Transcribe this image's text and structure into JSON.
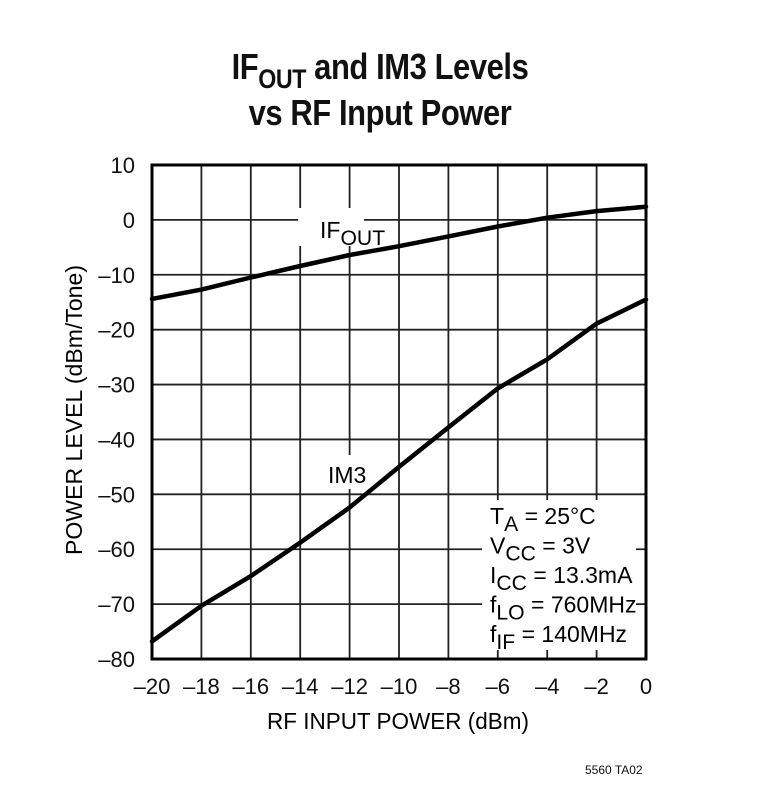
{
  "title": {
    "line1_main": "IF",
    "line1_sub": "OUT",
    "line1_rest": " and IM3 Levels",
    "line2": "vs RF Input Power"
  },
  "figure_id": "5560 TA02",
  "labels": {
    "ifout_main": "IF",
    "ifout_sub": "OUT",
    "im3": "IM3"
  },
  "conditions": [
    {
      "main": "T",
      "sub": "A",
      "rest": " = 25°C"
    },
    {
      "main": "V",
      "sub": "CC",
      "rest": " = 3V"
    },
    {
      "main": "I",
      "sub": "CC",
      "rest": " = 13.3mA"
    },
    {
      "main": "f",
      "sub": "LO",
      "rest": " = 760MHz"
    },
    {
      "main": "f",
      "sub": "IF",
      "rest": " = 140MHz"
    }
  ],
  "colors": {
    "line": "#000000",
    "grid": "#222222",
    "background": "#ffffff"
  },
  "chart_data": {
    "type": "line",
    "title": "IFOUT and IM3 Levels vs RF Input Power",
    "xlabel": "RF INPUT POWER (dBm)",
    "ylabel": "POWER LEVEL (dBm/Tone)",
    "xlim": [
      -20,
      0
    ],
    "ylim": [
      -80,
      10
    ],
    "x_ticks": [
      -20,
      -18,
      -16,
      -14,
      -12,
      -10,
      -8,
      -6,
      -4,
      -2,
      0
    ],
    "x_tick_labels": [
      "–20",
      "–18",
      "–16",
      "–14",
      "–12",
      "–10",
      "–8",
      "–6",
      "–4",
      "–2",
      "0"
    ],
    "y_ticks": [
      10,
      0,
      -10,
      -20,
      -30,
      -40,
      -50,
      -60,
      -70,
      -80
    ],
    "y_tick_labels": [
      "10",
      "0",
      "–10",
      "–20",
      "–30",
      "–40",
      "–50",
      "–60",
      "–70",
      "–80"
    ],
    "grid": true,
    "legend": "inline labels",
    "x": [
      -20,
      -18,
      -16,
      -14,
      -12,
      -10,
      -8,
      -6,
      -4,
      -2,
      0
    ],
    "series": [
      {
        "name": "IFOUT",
        "values": [
          -14.4,
          -12.7,
          -10.5,
          -8.4,
          -6.4,
          -4.8,
          -3.0,
          -1.2,
          0.4,
          1.6,
          2.4
        ]
      },
      {
        "name": "IM3",
        "values": [
          -76.8,
          -70.3,
          -64.9,
          -58.8,
          -52.4,
          -45.0,
          -37.8,
          -30.7,
          -25.4,
          -18.9,
          -14.5
        ]
      }
    ],
    "annotations": [
      "TA = 25°C",
      "VCC = 3V",
      "ICC = 13.3mA",
      "fLO = 760MHz",
      "fIF = 140MHz"
    ]
  }
}
